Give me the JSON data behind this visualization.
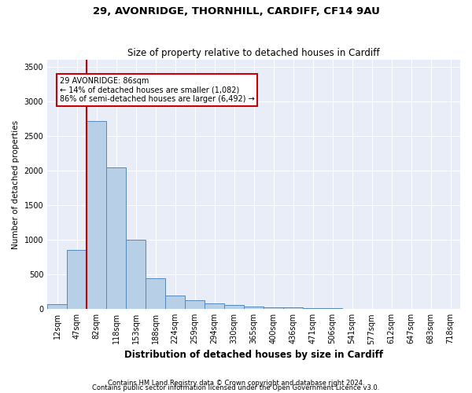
{
  "title1": "29, AVONRIDGE, THORNHILL, CARDIFF, CF14 9AU",
  "title2": "Size of property relative to detached houses in Cardiff",
  "xlabel": "Distribution of detached houses by size in Cardiff",
  "ylabel": "Number of detached properties",
  "footnote1": "Contains HM Land Registry data © Crown copyright and database right 2024.",
  "footnote2": "Contains public sector information licensed under the Open Government Licence v3.0.",
  "annotation_line1": "29 AVONRIDGE: 86sqm",
  "annotation_line2": "← 14% of detached houses are smaller (1,082)",
  "annotation_line3": "86% of semi-detached houses are larger (6,492) →",
  "bar_color": "#b8cfe8",
  "bar_edge_color": "#5588bb",
  "vline_color": "#cc0000",
  "annotation_box_edge_color": "#cc0000",
  "bg_color": "#e8edf8",
  "grid_color": "#ffffff",
  "categories": [
    "12sqm",
    "47sqm",
    "82sqm",
    "118sqm",
    "153sqm",
    "188sqm",
    "224sqm",
    "259sqm",
    "294sqm",
    "330sqm",
    "365sqm",
    "400sqm",
    "436sqm",
    "471sqm",
    "506sqm",
    "541sqm",
    "577sqm",
    "612sqm",
    "647sqm",
    "683sqm",
    "718sqm"
  ],
  "values": [
    75,
    850,
    2720,
    2050,
    1000,
    440,
    200,
    130,
    80,
    55,
    40,
    25,
    20,
    10,
    10,
    5,
    5,
    3,
    2,
    2,
    1
  ],
  "ylim": [
    0,
    3600
  ],
  "yticks": [
    0,
    500,
    1000,
    1500,
    2000,
    2500,
    3000,
    3500
  ],
  "vline_x": 1.5,
  "title1_fontsize": 9.5,
  "title2_fontsize": 8.5,
  "xlabel_fontsize": 8.5,
  "ylabel_fontsize": 7.5,
  "tick_fontsize": 7,
  "annotation_fontsize": 7,
  "footnote_fontsize": 6
}
